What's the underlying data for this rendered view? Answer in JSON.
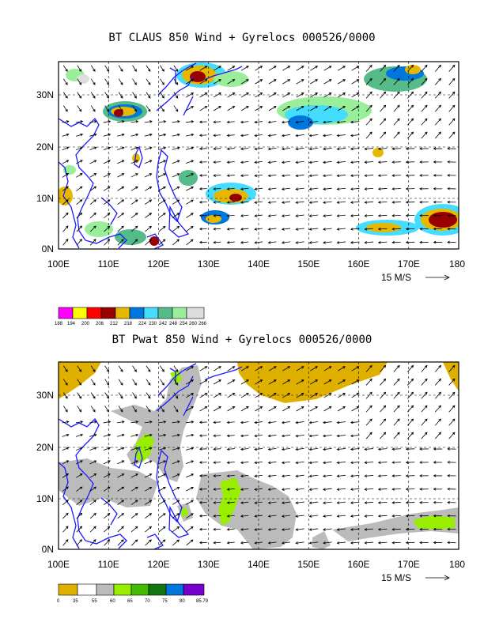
{
  "panels": [
    {
      "title": "BT CLAUS 850 Wind + Gyrelocs 000526/0000",
      "x_ticks": [
        "100E",
        "110E",
        "120E",
        "130E",
        "140E",
        "150E",
        "160E",
        "170E",
        "180"
      ],
      "y_ticks": [
        "0N",
        "10N",
        "20N",
        "30N"
      ],
      "vector_ref_label": "15 M/S",
      "colorbar": {
        "colors": [
          "#ff00ff",
          "#ffff00",
          "#ff0000",
          "#990000",
          "#e6b800",
          "#0077dd",
          "#44ddff",
          "#55bb88",
          "#99ee99",
          "#dddddd"
        ],
        "labels": [
          "188",
          "194",
          "200",
          "206",
          "212",
          "218",
          "224",
          "230",
          "242",
          "248",
          "254",
          "260",
          "266"
        ]
      }
    },
    {
      "title": "BT Pwat 850 Wind + Gyrelocs 000526/0000",
      "x_ticks": [
        "100E",
        "110E",
        "120E",
        "130E",
        "140E",
        "150E",
        "160E",
        "170E",
        "180"
      ],
      "y_ticks": [
        "0N",
        "10N",
        "20N",
        "30N"
      ],
      "vector_ref_label": "15 M/S",
      "colorbar": {
        "colors": [
          "#e0b000",
          "#ffffff",
          "#bbbbbb",
          "#99ee00",
          "#44bb00",
          "#117711",
          "#0077dd",
          "#7700cc"
        ],
        "labels": [
          "0",
          "35",
          "55",
          "60",
          "65",
          "70",
          "75",
          "80",
          "85.79"
        ]
      }
    }
  ]
}
